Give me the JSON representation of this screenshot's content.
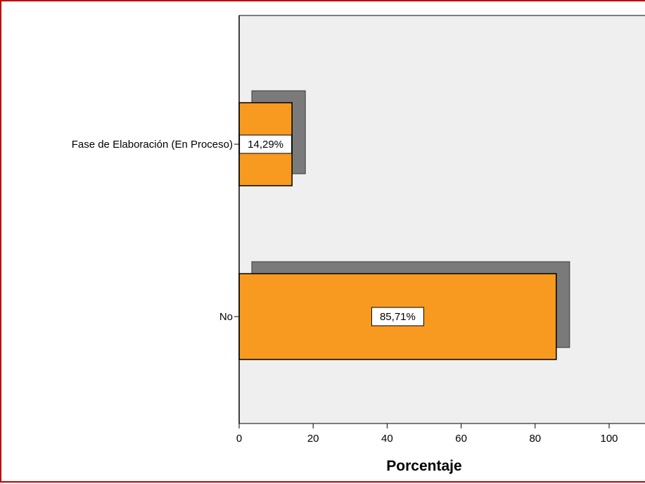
{
  "chart_data": {
    "type": "bar",
    "orientation": "horizontal",
    "categories": [
      "Fase de Elaboración (En Proceso)",
      "No"
    ],
    "values": [
      14.29,
      85.71
    ],
    "data_labels": [
      "14,29%",
      "85,71%"
    ],
    "xlabel": "Porcentaje",
    "ylabel": "",
    "xlim": [
      0,
      110
    ],
    "xticks": [
      0,
      20,
      40,
      60,
      80,
      100
    ],
    "grid": false,
    "legend": "none",
    "bar_style": "3d-shadow"
  },
  "colors": {
    "bar": "#f89a1f",
    "bar_shadow": "#7a7a7a",
    "plot_background": "#efefef",
    "frame_border": "#c00000"
  }
}
